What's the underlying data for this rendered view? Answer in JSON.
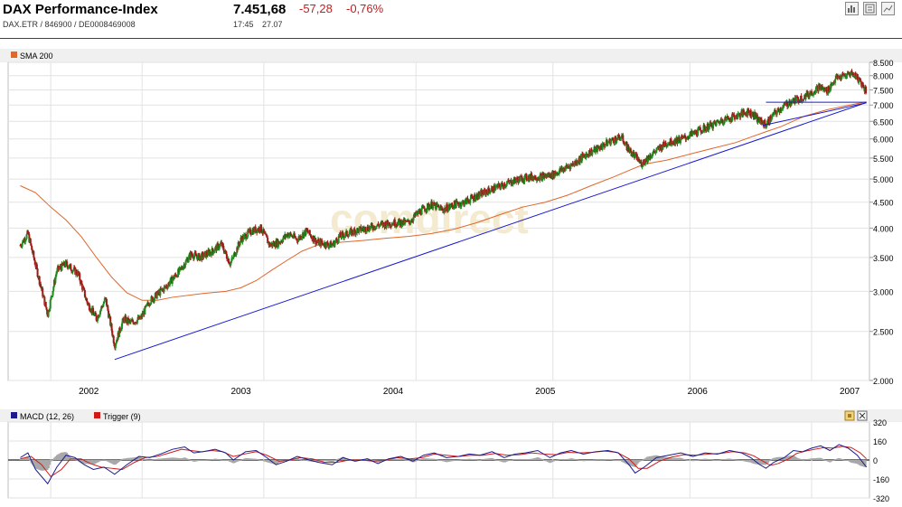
{
  "header": {
    "title": "DAX Performance-Index",
    "subtitle": "DAX.ETR  /  846900  /  DE0008469008",
    "price": "7.451,68",
    "change": "-57,28",
    "change_pct": "-0,76%",
    "time": "17:45",
    "date": "27.07",
    "buttons": [
      "bar-chart-icon",
      "news-icon",
      "line-chart-icon"
    ]
  },
  "watermark": "comdirect",
  "colors": {
    "price_up": "#1f8a1f",
    "price_down": "#a01818",
    "sma": "#e0662a",
    "trendline": "#1a1ad0",
    "macd": "#1a1a8c",
    "trigger": "#d01a1a",
    "histogram": "#a8a8a8"
  },
  "chart_data": [
    {
      "type": "candlestick",
      "legend": [
        "SMA 200"
      ],
      "x_ticks": [
        "2002",
        "2003",
        "2004",
        "2005",
        "2006",
        "2007"
      ],
      "y_ticks": [
        "2.000",
        "2.500",
        "3.000",
        "3.500",
        "4.000",
        "4.500",
        "5.000",
        "5.500",
        "6.000",
        "6.500",
        "7.000",
        "7.500",
        "8.000",
        "8.500"
      ],
      "y_scale": "log",
      "ylim": [
        2000,
        8500
      ],
      "price_path": [
        [
          2002.0,
          3700
        ],
        [
          2002.05,
          3900
        ],
        [
          2002.12,
          3200
        ],
        [
          2002.18,
          2700
        ],
        [
          2002.24,
          3300
        ],
        [
          2002.3,
          3400
        ],
        [
          2002.38,
          3250
        ],
        [
          2002.44,
          2850
        ],
        [
          2002.5,
          2650
        ],
        [
          2002.56,
          2900
        ],
        [
          2002.62,
          2350
        ],
        [
          2002.68,
          2650
        ],
        [
          2002.72,
          2600
        ],
        [
          2002.79,
          2650
        ],
        [
          2002.85,
          2870
        ],
        [
          2002.95,
          3050
        ],
        [
          2003.05,
          3300
        ],
        [
          2003.12,
          3550
        ],
        [
          2003.18,
          3500
        ],
        [
          2003.26,
          3600
        ],
        [
          2003.32,
          3720
        ],
        [
          2003.38,
          3400
        ],
        [
          2003.45,
          3800
        ],
        [
          2003.52,
          3950
        ],
        [
          2003.58,
          4000
        ],
        [
          2003.64,
          3700
        ],
        [
          2003.7,
          3750
        ],
        [
          2003.76,
          3900
        ],
        [
          2003.82,
          3800
        ],
        [
          2003.88,
          3950
        ],
        [
          2003.95,
          3750
        ],
        [
          2004.05,
          3700
        ],
        [
          2004.1,
          3850
        ],
        [
          2004.2,
          3950
        ],
        [
          2004.28,
          4000
        ],
        [
          2004.35,
          4050
        ],
        [
          2004.45,
          4100
        ],
        [
          2004.55,
          4100
        ],
        [
          2004.62,
          4300
        ],
        [
          2004.7,
          4450
        ],
        [
          2004.78,
          4350
        ],
        [
          2004.85,
          4450
        ],
        [
          2004.92,
          4500
        ],
        [
          2004.98,
          4600
        ],
        [
          2005.05,
          4700
        ],
        [
          2005.12,
          4800
        ],
        [
          2005.2,
          4900
        ],
        [
          2005.28,
          5000
        ],
        [
          2005.35,
          5050
        ],
        [
          2005.42,
          5050
        ],
        [
          2005.5,
          5100
        ],
        [
          2005.58,
          5250
        ],
        [
          2005.65,
          5400
        ],
        [
          2005.72,
          5600
        ],
        [
          2005.8,
          5750
        ],
        [
          2005.88,
          5950
        ],
        [
          2005.95,
          6050
        ],
        [
          2006.0,
          5700
        ],
        [
          2006.05,
          5500
        ],
        [
          2006.08,
          5350
        ],
        [
          2006.15,
          5600
        ],
        [
          2006.25,
          5900
        ],
        [
          2006.35,
          6000
        ],
        [
          2006.45,
          6200
        ],
        [
          2006.55,
          6400
        ],
        [
          2006.62,
          6550
        ],
        [
          2006.7,
          6650
        ],
        [
          2006.78,
          6800
        ],
        [
          2006.82,
          6700
        ],
        [
          2006.86,
          6500
        ],
        [
          2006.9,
          6400
        ],
        [
          2006.95,
          6700
        ],
        [
          2007.0,
          6900
        ],
        [
          2007.06,
          7100
        ],
        [
          2007.12,
          7200
        ],
        [
          2007.18,
          7350
        ],
        [
          2007.25,
          7600
        ],
        [
          2007.3,
          7450
        ],
        [
          2007.36,
          7900
        ],
        [
          2007.42,
          8000
        ],
        [
          2007.46,
          8100
        ],
        [
          2007.49,
          8000
        ],
        [
          2007.52,
          7800
        ],
        [
          2007.56,
          7450
        ]
      ],
      "sma_200": [
        [
          2002.0,
          4850
        ],
        [
          2002.1,
          4700
        ],
        [
          2002.2,
          4400
        ],
        [
          2002.3,
          4150
        ],
        [
          2002.4,
          3850
        ],
        [
          2002.5,
          3500
        ],
        [
          2002.6,
          3200
        ],
        [
          2002.7,
          2980
        ],
        [
          2002.8,
          2880
        ],
        [
          2002.9,
          2880
        ],
        [
          2003.0,
          2920
        ],
        [
          2003.2,
          2970
        ],
        [
          2003.35,
          3000
        ],
        [
          2003.45,
          3050
        ],
        [
          2003.55,
          3150
        ],
        [
          2003.65,
          3300
        ],
        [
          2003.75,
          3450
        ],
        [
          2003.85,
          3600
        ],
        [
          2003.95,
          3700
        ],
        [
          2004.1,
          3750
        ],
        [
          2004.25,
          3780
        ],
        [
          2004.4,
          3820
        ],
        [
          2004.55,
          3850
        ],
        [
          2004.7,
          3900
        ],
        [
          2004.85,
          3980
        ],
        [
          2005.0,
          4100
        ],
        [
          2005.15,
          4250
        ],
        [
          2005.3,
          4400
        ],
        [
          2005.45,
          4500
        ],
        [
          2005.6,
          4650
        ],
        [
          2005.75,
          4850
        ],
        [
          2005.9,
          5050
        ],
        [
          2006.0,
          5200
        ],
        [
          2006.1,
          5350
        ],
        [
          2006.25,
          5450
        ],
        [
          2006.4,
          5600
        ],
        [
          2006.55,
          5750
        ],
        [
          2006.7,
          5900
        ],
        [
          2006.8,
          6050
        ],
        [
          2006.9,
          6200
        ],
        [
          2007.0,
          6350
        ],
        [
          2007.15,
          6650
        ],
        [
          2007.3,
          6850
        ],
        [
          2007.45,
          7000
        ],
        [
          2007.56,
          7100
        ]
      ],
      "trendline": [
        [
          2002.62,
          2200
        ],
        [
          2007.56,
          7080
        ]
      ],
      "horizontal_line": {
        "y": 7090,
        "x_from": 2006.9,
        "x_to": 2007.56
      },
      "trendline_short": [
        [
          2006.88,
          6380
        ],
        [
          2007.56,
          7070
        ]
      ]
    },
    {
      "type": "line",
      "legend": [
        "MACD (12, 26)",
        "Trigger (9)"
      ],
      "y_ticks": [
        "320",
        "160",
        "0",
        "-160",
        "-320"
      ],
      "ylim": [
        -320,
        320
      ],
      "macd": [
        [
          2002.0,
          20
        ],
        [
          2002.05,
          60
        ],
        [
          2002.1,
          -80
        ],
        [
          2002.18,
          -200
        ],
        [
          2002.24,
          -60
        ],
        [
          2002.3,
          40
        ],
        [
          2002.36,
          20
        ],
        [
          2002.42,
          -40
        ],
        [
          2002.48,
          -80
        ],
        [
          2002.55,
          -60
        ],
        [
          2002.62,
          -120
        ],
        [
          2002.7,
          -40
        ],
        [
          2002.78,
          30
        ],
        [
          2002.85,
          20
        ],
        [
          2002.92,
          50
        ],
        [
          2003.0,
          90
        ],
        [
          2003.08,
          110
        ],
        [
          2003.14,
          60
        ],
        [
          2003.2,
          70
        ],
        [
          2003.28,
          90
        ],
        [
          2003.35,
          60
        ],
        [
          2003.4,
          0
        ],
        [
          2003.48,
          70
        ],
        [
          2003.55,
          80
        ],
        [
          2003.62,
          20
        ],
        [
          2003.68,
          -40
        ],
        [
          2003.75,
          -10
        ],
        [
          2003.82,
          30
        ],
        [
          2003.9,
          0
        ],
        [
          2003.96,
          -20
        ],
        [
          2004.05,
          -40
        ],
        [
          2004.12,
          20
        ],
        [
          2004.2,
          -10
        ],
        [
          2004.28,
          10
        ],
        [
          2004.35,
          -30
        ],
        [
          2004.42,
          10
        ],
        [
          2004.5,
          30
        ],
        [
          2004.58,
          -10
        ],
        [
          2004.65,
          40
        ],
        [
          2004.72,
          60
        ],
        [
          2004.8,
          20
        ],
        [
          2004.88,
          30
        ],
        [
          2004.95,
          50
        ],
        [
          2005.02,
          40
        ],
        [
          2005.1,
          70
        ],
        [
          2005.18,
          20
        ],
        [
          2005.25,
          50
        ],
        [
          2005.32,
          60
        ],
        [
          2005.4,
          80
        ],
        [
          2005.48,
          20
        ],
        [
          2005.55,
          60
        ],
        [
          2005.62,
          80
        ],
        [
          2005.7,
          50
        ],
        [
          2005.78,
          70
        ],
        [
          2005.86,
          80
        ],
        [
          2005.93,
          60
        ],
        [
          2006.0,
          -40
        ],
        [
          2006.04,
          -110
        ],
        [
          2006.1,
          -60
        ],
        [
          2006.18,
          20
        ],
        [
          2006.26,
          40
        ],
        [
          2006.34,
          60
        ],
        [
          2006.42,
          30
        ],
        [
          2006.5,
          60
        ],
        [
          2006.58,
          50
        ],
        [
          2006.66,
          80
        ],
        [
          2006.74,
          60
        ],
        [
          2006.8,
          20
        ],
        [
          2006.86,
          -40
        ],
        [
          2006.9,
          -70
        ],
        [
          2006.95,
          -20
        ],
        [
          2007.02,
          20
        ],
        [
          2007.08,
          80
        ],
        [
          2007.14,
          70
        ],
        [
          2007.2,
          100
        ],
        [
          2007.26,
          120
        ],
        [
          2007.32,
          80
        ],
        [
          2007.38,
          130
        ],
        [
          2007.44,
          100
        ],
        [
          2007.5,
          40
        ],
        [
          2007.56,
          -60
        ]
      ],
      "trigger": [
        [
          2002.0,
          10
        ],
        [
          2002.07,
          30
        ],
        [
          2002.14,
          -40
        ],
        [
          2002.2,
          -140
        ],
        [
          2002.27,
          -80
        ],
        [
          2002.33,
          10
        ],
        [
          2002.4,
          10
        ],
        [
          2002.46,
          -30
        ],
        [
          2002.53,
          -60
        ],
        [
          2002.6,
          -70
        ],
        [
          2002.67,
          -80
        ],
        [
          2002.75,
          -20
        ],
        [
          2002.82,
          20
        ],
        [
          2002.9,
          30
        ],
        [
          2002.98,
          60
        ],
        [
          2003.06,
          90
        ],
        [
          2003.12,
          80
        ],
        [
          2003.19,
          70
        ],
        [
          2003.26,
          80
        ],
        [
          2003.33,
          70
        ],
        [
          2003.4,
          30
        ],
        [
          2003.47,
          50
        ],
        [
          2003.55,
          70
        ],
        [
          2003.62,
          40
        ],
        [
          2003.7,
          -10
        ],
        [
          2003.77,
          0
        ],
        [
          2003.84,
          20
        ],
        [
          2003.92,
          10
        ],
        [
          2004.0,
          -20
        ],
        [
          2004.08,
          -20
        ],
        [
          2004.16,
          0
        ],
        [
          2004.24,
          0
        ],
        [
          2004.32,
          -10
        ],
        [
          2004.4,
          0
        ],
        [
          2004.48,
          20
        ],
        [
          2004.56,
          10
        ],
        [
          2004.64,
          20
        ],
        [
          2004.72,
          50
        ],
        [
          2004.8,
          40
        ],
        [
          2004.88,
          30
        ],
        [
          2004.96,
          40
        ],
        [
          2005.04,
          40
        ],
        [
          2005.12,
          55
        ],
        [
          2005.2,
          40
        ],
        [
          2005.28,
          45
        ],
        [
          2005.36,
          60
        ],
        [
          2005.44,
          50
        ],
        [
          2005.52,
          45
        ],
        [
          2005.6,
          65
        ],
        [
          2005.68,
          60
        ],
        [
          2005.76,
          65
        ],
        [
          2005.84,
          75
        ],
        [
          2005.92,
          65
        ],
        [
          2006.0,
          10
        ],
        [
          2006.06,
          -70
        ],
        [
          2006.12,
          -70
        ],
        [
          2006.2,
          -10
        ],
        [
          2006.28,
          25
        ],
        [
          2006.36,
          45
        ],
        [
          2006.44,
          40
        ],
        [
          2006.52,
          50
        ],
        [
          2006.6,
          55
        ],
        [
          2006.68,
          70
        ],
        [
          2006.76,
          60
        ],
        [
          2006.82,
          35
        ],
        [
          2006.88,
          -10
        ],
        [
          2006.93,
          -45
        ],
        [
          2006.98,
          -30
        ],
        [
          2007.05,
          10
        ],
        [
          2007.1,
          55
        ],
        [
          2007.16,
          75
        ],
        [
          2007.22,
          90
        ],
        [
          2007.28,
          105
        ],
        [
          2007.34,
          100
        ],
        [
          2007.4,
          115
        ],
        [
          2007.46,
          105
        ],
        [
          2007.52,
          60
        ],
        [
          2007.56,
          10
        ]
      ]
    }
  ]
}
